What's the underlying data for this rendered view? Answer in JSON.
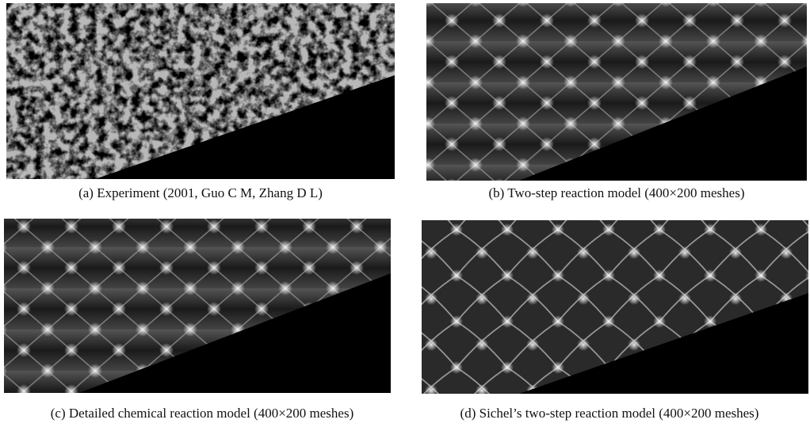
{
  "figure": {
    "panels": [
      {
        "caption": "(a) Experiment (2001, Guo C M, Zhang D L)"
      },
      {
        "caption": "(b) Two-step reaction model (400×200 meshes)"
      },
      {
        "caption": "(c) Detailed chemical reaction model (400×200 meshes)"
      },
      {
        "caption": "(d) Sichel’s two-step reaction model (400×200 meshes)"
      }
    ]
  }
}
